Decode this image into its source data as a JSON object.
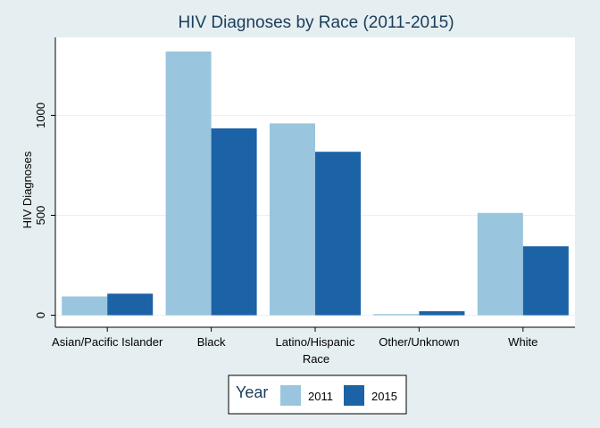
{
  "chart_data": {
    "type": "bar",
    "title": "HIV Diagnoses by Race (2011-2015)",
    "xlabel": "Race",
    "ylabel": "HIV Diagnoses",
    "categories": [
      "Asian/Pacific Islander",
      "Black",
      "Latino/Hispanic",
      "Other/Unknown",
      "White"
    ],
    "series": [
      {
        "name": "2011",
        "values": [
          94,
          1320,
          960,
          6,
          512
        ],
        "color": "#9ac5de"
      },
      {
        "name": "2015",
        "values": [
          108,
          935,
          818,
          20,
          345
        ],
        "color": "#1c62a6"
      }
    ],
    "ylim": [
      -60,
      1390
    ],
    "yticks": [
      "0",
      "500",
      "1000"
    ],
    "ytick_values": [
      0,
      500,
      1000
    ],
    "grid": true,
    "legend": {
      "title": "Year",
      "placement": "bottom-center"
    },
    "colors": {
      "background": "#e5eef0",
      "plot_bg": "#ffffff",
      "grid": "#eaf0f2"
    }
  }
}
